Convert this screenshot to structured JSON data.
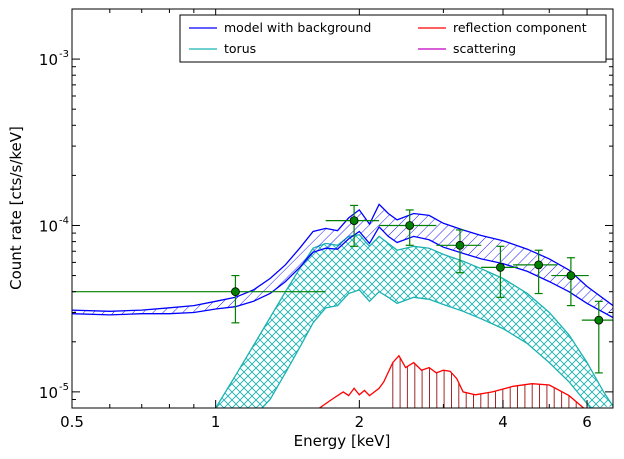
{
  "chart_data": {
    "type": "line",
    "xlabel": "Energy [keV]",
    "ylabel": "Count rate [cts/s/keV]",
    "xscale": "log",
    "yscale": "log",
    "xlim": [
      0.5,
      6.8
    ],
    "ylim": [
      8e-06,
      0.002
    ],
    "x_ticks": [
      {
        "value": 0.5,
        "label": "0.5"
      },
      {
        "value": 1,
        "label": "1"
      },
      {
        "value": 2,
        "label": "2"
      },
      {
        "value": 4,
        "label": "4"
      },
      {
        "value": 6,
        "label": "6"
      }
    ],
    "y_ticks": [
      {
        "value": 1e-05,
        "label": "10",
        "exp": "-5"
      },
      {
        "value": 0.0001,
        "label": "10",
        "exp": "-4"
      },
      {
        "value": 0.001,
        "label": "10",
        "exp": "-3"
      }
    ],
    "legend": {
      "position": "top-right",
      "entries": [
        {
          "name": "model with background",
          "color": "#0000ff"
        },
        {
          "name": "reflection component",
          "color": "#ff0000"
        },
        {
          "name": "torus",
          "color": "#1ab2b2"
        },
        {
          "name": "scattering",
          "color": "#bf00bf"
        }
      ]
    },
    "series": [
      {
        "name": "model with background",
        "color": "#0000ff",
        "band": true,
        "upper": [
          [
            0.5,
            3.1e-05
          ],
          [
            0.6,
            3.05e-05
          ],
          [
            0.7,
            3.1e-05
          ],
          [
            0.8,
            3.2e-05
          ],
          [
            0.9,
            3.3e-05
          ],
          [
            1.0,
            3.5e-05
          ],
          [
            1.1,
            3.7e-05
          ],
          [
            1.2,
            4.1e-05
          ],
          [
            1.3,
            4.8e-05
          ],
          [
            1.4,
            5.8e-05
          ],
          [
            1.5,
            7.3e-05
          ],
          [
            1.6,
            9.2e-05
          ],
          [
            1.7,
            9.6e-05
          ],
          [
            1.8,
            9.3e-05
          ],
          [
            1.9,
            0.000111
          ],
          [
            2.0,
            0.000124
          ],
          [
            2.1,
            0.000102
          ],
          [
            2.2,
            0.000134
          ],
          [
            2.3,
            0.000118
          ],
          [
            2.4,
            0.000108
          ],
          [
            2.6,
            0.000118
          ],
          [
            2.8,
            0.000115
          ],
          [
            3.0,
            0.000103
          ],
          [
            3.3,
            9.4e-05
          ],
          [
            3.6,
            8.7e-05
          ],
          [
            4.0,
            8.1e-05
          ],
          [
            4.5,
            7.2e-05
          ],
          [
            5.0,
            6.3e-05
          ],
          [
            5.5,
            5.4e-05
          ],
          [
            6.0,
            4.3e-05
          ],
          [
            6.8,
            3.3e-05
          ]
        ],
        "lower": [
          [
            0.5,
            2.95e-05
          ],
          [
            0.6,
            2.9e-05
          ],
          [
            0.7,
            2.95e-05
          ],
          [
            0.8,
            2.95e-05
          ],
          [
            0.9,
            3e-05
          ],
          [
            1.0,
            3.15e-05
          ],
          [
            1.1,
            3.25e-05
          ],
          [
            1.2,
            3.5e-05
          ],
          [
            1.3,
            3.9e-05
          ],
          [
            1.4,
            4.6e-05
          ],
          [
            1.5,
            5.6e-05
          ],
          [
            1.6,
            6.9e-05
          ],
          [
            1.7,
            7.3e-05
          ],
          [
            1.8,
            7.2e-05
          ],
          [
            1.9,
            8.3e-05
          ],
          [
            2.0,
            9.2e-05
          ],
          [
            2.1,
            7.8e-05
          ],
          [
            2.2,
            9.8e-05
          ],
          [
            2.3,
            8.6e-05
          ],
          [
            2.4,
            7.9e-05
          ],
          [
            2.6,
            8.6e-05
          ],
          [
            2.8,
            8.2e-05
          ],
          [
            3.0,
            7.4e-05
          ],
          [
            3.3,
            6.8e-05
          ],
          [
            3.6,
            6.3e-05
          ],
          [
            4.0,
            5.9e-05
          ],
          [
            4.5,
            5.3e-05
          ],
          [
            5.0,
            4.6e-05
          ],
          [
            5.5,
            4e-05
          ],
          [
            6.0,
            3.4e-05
          ],
          [
            6.8,
            2.8e-05
          ]
        ]
      },
      {
        "name": "torus",
        "color": "#1ab2b2",
        "band": true,
        "upper": [
          [
            1.0,
            8e-06
          ],
          [
            1.1,
            1.25e-05
          ],
          [
            1.2,
            1.9e-05
          ],
          [
            1.3,
            2.8e-05
          ],
          [
            1.4,
            4e-05
          ],
          [
            1.5,
            5.5e-05
          ],
          [
            1.6,
            7.3e-05
          ],
          [
            1.7,
            7.8e-05
          ],
          [
            1.8,
            7.6e-05
          ],
          [
            1.9,
            8.6e-05
          ],
          [
            2.0,
            8.8e-05
          ],
          [
            2.1,
            7.5e-05
          ],
          [
            2.2,
            8.6e-05
          ],
          [
            2.3,
            7.8e-05
          ],
          [
            2.4,
            7.1e-05
          ],
          [
            2.6,
            7.5e-05
          ],
          [
            2.8,
            7.3e-05
          ],
          [
            3.0,
            6.7e-05
          ],
          [
            3.3,
            6.1e-05
          ],
          [
            3.6,
            5.5e-05
          ],
          [
            4.0,
            4.8e-05
          ],
          [
            4.5,
            3.9e-05
          ],
          [
            5.0,
            3e-05
          ],
          [
            5.5,
            2.2e-05
          ],
          [
            6.0,
            1.5e-05
          ],
          [
            6.5,
            1e-05
          ],
          [
            6.8,
            8.2e-06
          ]
        ],
        "lower": [
          [
            1.25,
            8e-06
          ],
          [
            1.3,
            9e-06
          ],
          [
            1.4,
            1.3e-05
          ],
          [
            1.5,
            1.85e-05
          ],
          [
            1.6,
            2.6e-05
          ],
          [
            1.7,
            3.2e-05
          ],
          [
            1.8,
            3.3e-05
          ],
          [
            1.9,
            3.9e-05
          ],
          [
            2.0,
            4.1e-05
          ],
          [
            2.1,
            3.5e-05
          ],
          [
            2.2,
            4e-05
          ],
          [
            2.3,
            3.7e-05
          ],
          [
            2.4,
            3.4e-05
          ],
          [
            2.6,
            3.7e-05
          ],
          [
            2.8,
            3.6e-05
          ],
          [
            3.0,
            3.35e-05
          ],
          [
            3.3,
            3.05e-05
          ],
          [
            3.6,
            2.75e-05
          ],
          [
            4.0,
            2.4e-05
          ],
          [
            4.5,
            1.95e-05
          ],
          [
            5.0,
            1.5e-05
          ],
          [
            5.5,
            1.15e-05
          ],
          [
            6.0,
            8.5e-06
          ],
          [
            6.1,
            8e-06
          ]
        ]
      },
      {
        "name": "reflection component",
        "color": "#ff0000",
        "band": false,
        "points": [
          [
            1.65,
            8e-06
          ],
          [
            1.75,
            9e-06
          ],
          [
            1.85,
            1e-05
          ],
          [
            1.9,
            9.5e-06
          ],
          [
            1.95,
            1.05e-05
          ],
          [
            2.0,
            9.6e-06
          ],
          [
            2.05,
            1.02e-05
          ],
          [
            2.1,
            9.5e-06
          ],
          [
            2.2,
            1.05e-05
          ],
          [
            2.25,
            1.15e-05
          ],
          [
            2.35,
            1.5e-05
          ],
          [
            2.42,
            1.65e-05
          ],
          [
            2.5,
            1.4e-05
          ],
          [
            2.6,
            1.5e-05
          ],
          [
            2.7,
            1.35e-05
          ],
          [
            2.8,
            1.4e-05
          ],
          [
            2.9,
            1.3e-05
          ],
          [
            3.0,
            1.35e-05
          ],
          [
            3.1,
            1.33e-05
          ],
          [
            3.2,
            1.2e-05
          ],
          [
            3.3,
            1e-05
          ],
          [
            3.5,
            9.6e-06
          ],
          [
            3.8,
            1e-05
          ],
          [
            4.2,
            1.08e-05
          ],
          [
            4.6,
            1.12e-05
          ],
          [
            5.0,
            1.1e-05
          ],
          [
            5.5,
            9.5e-06
          ],
          [
            5.9,
            8e-06
          ]
        ],
        "hatch_x_range": [
          2.35,
          5.9
        ]
      }
    ],
    "data_points": {
      "color": "#008000",
      "points": [
        {
          "x": 1.1,
          "y": 4e-05,
          "xlo": 0.5,
          "xhi": 1.7,
          "ylo": 2.6e-05,
          "yhi": 5e-05
        },
        {
          "x": 1.95,
          "y": 0.000107,
          "xlo": 1.7,
          "xhi": 2.2,
          "ylo": 7.5e-05,
          "yhi": 0.000132
        },
        {
          "x": 2.55,
          "y": 0.0001,
          "xlo": 2.2,
          "xhi": 2.9,
          "ylo": 7.6e-05,
          "yhi": 0.000124
        },
        {
          "x": 3.25,
          "y": 7.6e-05,
          "xlo": 2.9,
          "xhi": 3.6,
          "ylo": 5.2e-05,
          "yhi": 9.4e-05
        },
        {
          "x": 3.95,
          "y": 5.6e-05,
          "xlo": 3.6,
          "xhi": 4.3,
          "ylo": 3.7e-05,
          "yhi": 7.5e-05
        },
        {
          "x": 4.75,
          "y": 5.8e-05,
          "xlo": 4.2,
          "xhi": 5.2,
          "ylo": 3.9e-05,
          "yhi": 7.1e-05
        },
        {
          "x": 5.55,
          "y": 5e-05,
          "xlo": 5.05,
          "xhi": 6.05,
          "ylo": 3.3e-05,
          "yhi": 6.4e-05
        },
        {
          "x": 6.35,
          "y": 2.7e-05,
          "xlo": 5.85,
          "xhi": 6.8,
          "ylo": 1.3e-05,
          "yhi": 3.5e-05
        }
      ]
    }
  }
}
